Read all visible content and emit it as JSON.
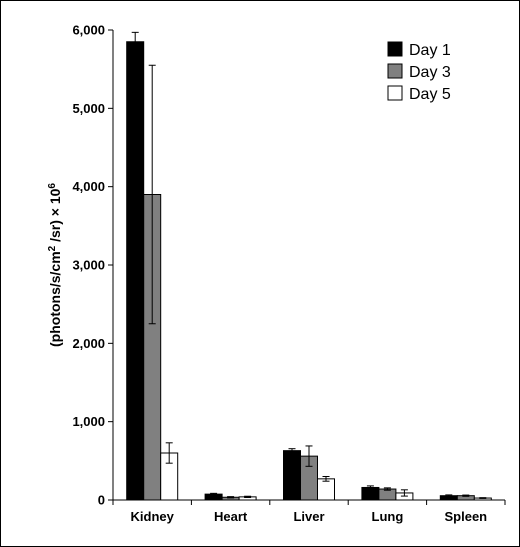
{
  "chart_data": {
    "type": "bar",
    "title": "",
    "xlabel": "",
    "ylabel": "(photons/s/cm2 /sr) × 10^6",
    "ylabel_parts": {
      "prefix": "(photons/s/cm",
      "sup2": "2",
      "mid": " /sr) × 10",
      "sup6": "6"
    },
    "ylim": [
      0,
      6000
    ],
    "yticks": [
      0,
      1000,
      2000,
      3000,
      4000,
      5000,
      6000
    ],
    "ytick_labels": [
      "0",
      "1,000",
      "2,000",
      "3,000",
      "4,000",
      "5,000",
      "6,000"
    ],
    "categories": [
      "Kidney",
      "Heart",
      "Liver",
      "Lung",
      "Spleen"
    ],
    "series": [
      {
        "name": "Day 1",
        "color": "#000000",
        "values": [
          5850,
          75,
          630,
          160,
          55
        ],
        "errors": [
          120,
          10,
          25,
          20,
          10
        ]
      },
      {
        "name": "Day 3",
        "color": "#808080",
        "values": [
          3900,
          35,
          560,
          140,
          55
        ],
        "errors": [
          1650,
          8,
          130,
          15,
          8
        ]
      },
      {
        "name": "Day 5",
        "color": "#ffffff",
        "values": [
          600,
          40,
          270,
          90,
          25
        ],
        "errors": [
          130,
          8,
          30,
          40,
          5
        ]
      }
    ],
    "legend_position": "top-right",
    "grid": false
  }
}
